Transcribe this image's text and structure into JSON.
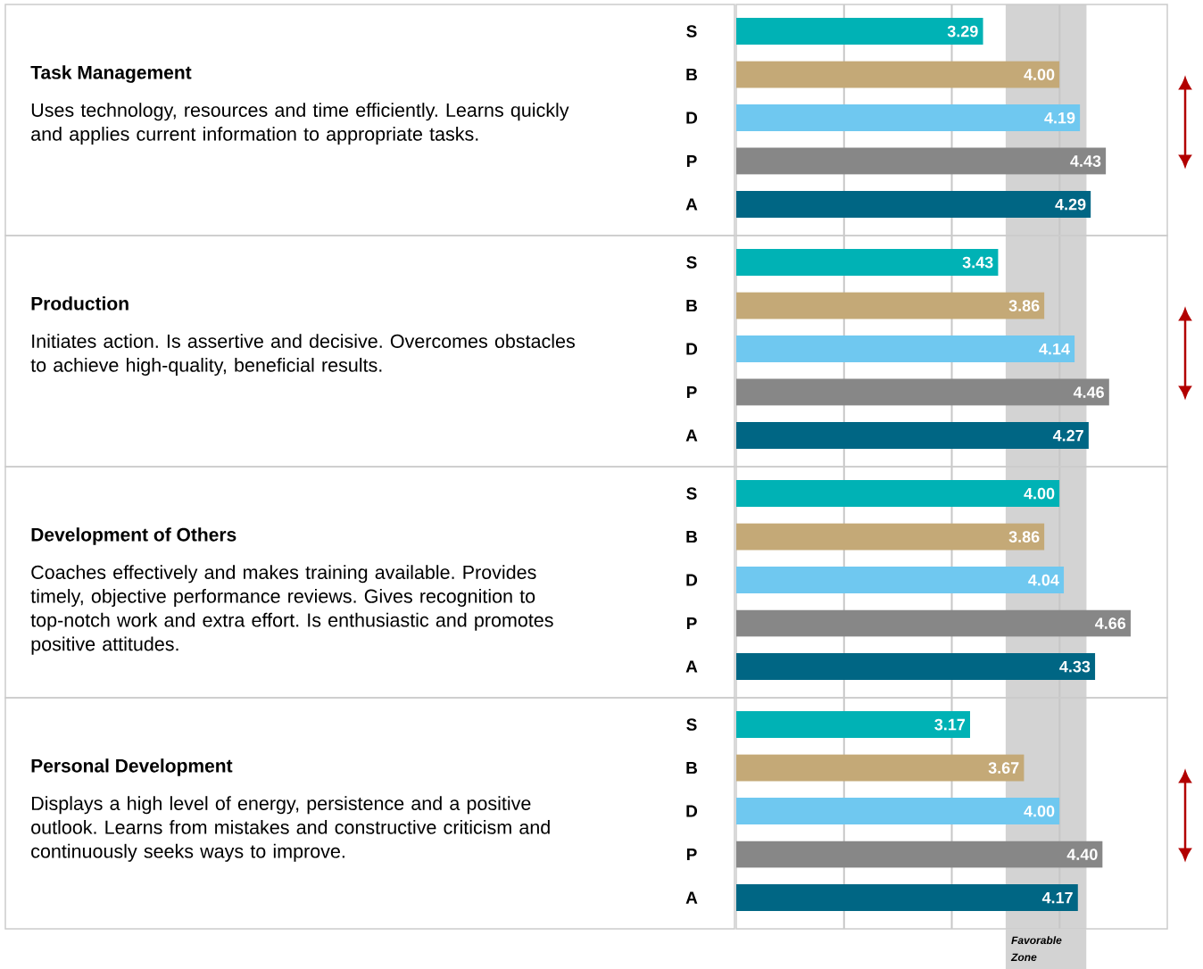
{
  "chart_data": [
    {
      "type": "other",
      "title": "Task Management",
      "subtitle": "Uses technology, resources and time efficiently. Learns quickly and applies current information to appropriate tasks."
    },
    {
      "type": "bar",
      "orientation": "horizontal",
      "categories": [
        "S",
        "B",
        "D",
        "P",
        "A"
      ],
      "values": [
        3.29,
        4.0,
        4.19,
        4.43,
        4.29
      ],
      "value_labels": [
        "3.29",
        "4.00",
        "4.19",
        "4.43",
        "4.29"
      ],
      "colors": [
        "#00b2b5",
        "#c4a977",
        "#6fc8f0",
        "#878787",
        "#006684"
      ],
      "xlim": [
        1,
        5
      ],
      "xticks": [
        {
          "value": 2,
          "label": null
        },
        {
          "value": 3,
          "label": null
        },
        {
          "value": 4,
          "label": null
        }
      ],
      "grid": "x",
      "tick_labels": "y",
      "bands": [
        {
          "axis": "x",
          "from": 3.5,
          "to": 4.25,
          "color": "#d3d3d3"
        }
      ]
    },
    {
      "type": "other",
      "title": "Production",
      "subtitle": "Initiates action. Is assertive and decisive. Overcomes obstacles to achieve high-quality, beneficial results."
    },
    {
      "type": "bar",
      "orientation": "horizontal",
      "categories": [
        "S",
        "B",
        "D",
        "P",
        "A"
      ],
      "values": [
        3.43,
        3.86,
        4.14,
        4.46,
        4.27
      ],
      "value_labels": [
        "3.43",
        "3.86",
        "4.14",
        "4.46",
        "4.27"
      ],
      "colors": [
        "#00b2b5",
        "#c4a977",
        "#6fc8f0",
        "#878787",
        "#006684"
      ],
      "xlim": [
        1,
        5
      ],
      "xticks": [
        {
          "value": 2,
          "label": null
        },
        {
          "value": 3,
          "label": null
        },
        {
          "value": 4,
          "label": null
        }
      ],
      "grid": "x",
      "tick_labels": "y",
      "bands": [
        {
          "axis": "x",
          "from": 3.5,
          "to": 4.25,
          "color": "#d3d3d3"
        }
      ]
    },
    {
      "type": "other",
      "title": "Development of Others",
      "subtitle": "Coaches effectively and makes training available. Provides timely, objective performance reviews. Gives recognition to top-notch work and extra effort. Is enthusiastic and promotes positive attitudes."
    },
    {
      "type": "bar",
      "orientation": "horizontal",
      "categories": [
        "S",
        "B",
        "D",
        "P",
        "A"
      ],
      "values": [
        4.0,
        3.86,
        4.04,
        4.66,
        4.33
      ],
      "value_labels": [
        "4.00",
        "3.86",
        "4.04",
        "4.66",
        "4.33"
      ],
      "colors": [
        "#00b2b5",
        "#c4a977",
        "#6fc8f0",
        "#878787",
        "#006684"
      ],
      "xlim": [
        1,
        5
      ],
      "xticks": [
        {
          "value": 2,
          "label": null
        },
        {
          "value": 3,
          "label": null
        },
        {
          "value": 4,
          "label": null
        }
      ],
      "grid": "x",
      "tick_labels": "y",
      "bands": [
        {
          "axis": "x",
          "from": 3.5,
          "to": 4.25,
          "color": "#d3d3d3"
        }
      ]
    },
    {
      "type": "other",
      "title": "Personal Development",
      "subtitle": "Displays a high level of energy, persistence and a positive outlook. Learns from mistakes and constructive criticism and continuously seeks ways to improve."
    },
    {
      "type": "bar",
      "orientation": "horizontal",
      "categories": [
        "S",
        "B",
        "D",
        "P",
        "A"
      ],
      "values": [
        3.17,
        3.67,
        4.0,
        4.4,
        4.17
      ],
      "value_labels": [
        "3.17",
        "3.67",
        "4.00",
        "4.40",
        "4.17"
      ],
      "colors": [
        "#00b2b5",
        "#c4a977",
        "#6fc8f0",
        "#878787",
        "#006684"
      ],
      "xlim": [
        1,
        5
      ],
      "xticks": [
        {
          "value": 2,
          "label": null
        },
        {
          "value": 3,
          "label": null
        },
        {
          "value": 4,
          "label": null
        }
      ],
      "grid": "x",
      "tick_labels": "y",
      "bands": [
        {
          "axis": "x",
          "from": 3.5,
          "to": 4.25,
          "color": "#d3d3d3",
          "label": "Favorable Zone"
        }
      ]
    }
  ]
}
